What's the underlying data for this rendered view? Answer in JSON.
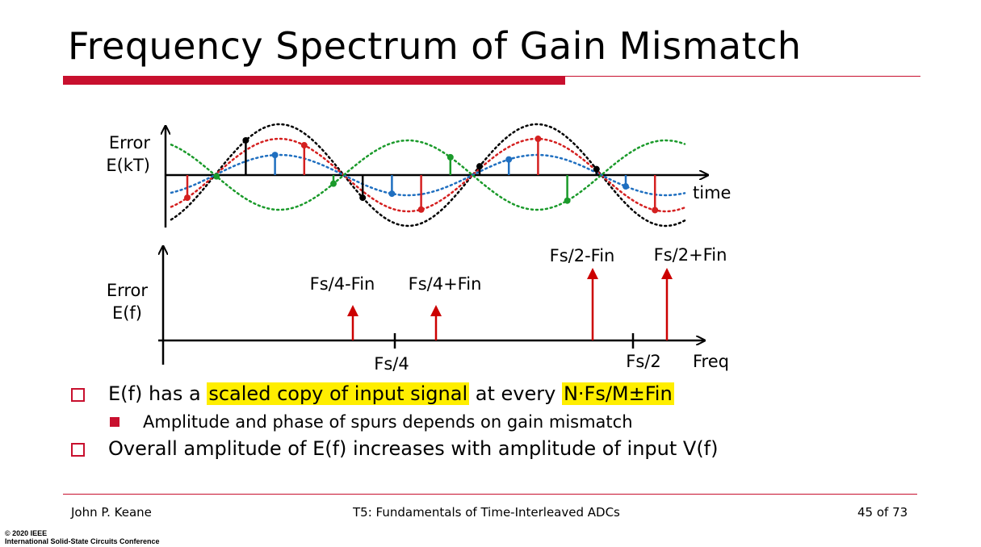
{
  "slide": {
    "title": "Frequency Spectrum of Gain Mismatch"
  },
  "time_plot": {
    "ylabel_line1": "Error",
    "ylabel_line2": "E(kT)",
    "xlabel": "time"
  },
  "freq_plot": {
    "ylabel_line1": "Error",
    "ylabel_line2": "E(f)",
    "xlabel": "Freq",
    "tick_fs4": "Fs/4",
    "tick_fs2": "Fs/2",
    "spur_labels": [
      "Fs/4-Fin",
      "Fs/4+Fin",
      "Fs/2-Fin",
      "Fs/2+Fin"
    ]
  },
  "bullets": {
    "b1_pre": "E(f) has a ",
    "b1_hl1": "scaled copy of input signal",
    "b1_mid": " at every ",
    "b1_hl2": "N·Fs/M±Fin",
    "b1_sub": "Amplitude and phase of spurs depends on gain mismatch",
    "b2": "Overall amplitude of E(f) increases with amplitude of input V(f)"
  },
  "footer": {
    "author": "John P. Keane",
    "course": "T5: Fundamentals of Time-Interleaved ADCs",
    "page": "45 of 73",
    "copyright_line1": "© 2020 IEEE",
    "copyright_line2": "International Solid-State Circuits Conference"
  },
  "colors": {
    "accent_red": "#c8102e",
    "spur_red": "#cc0000",
    "highlight": "#ffee00",
    "wave_black": "#000000",
    "wave_red": "#d42020",
    "wave_blue": "#1f6fc0",
    "wave_green": "#1a9a2a"
  }
}
